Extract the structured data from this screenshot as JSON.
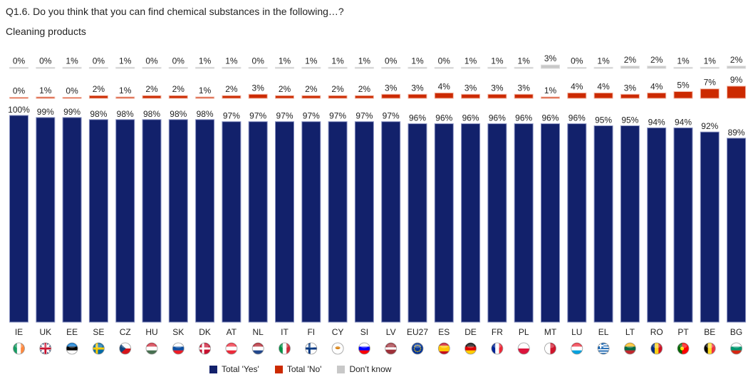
{
  "header": {
    "title": "Q1.6. Do you think that you can find chemical substances in the following…?",
    "subtitle": "Cleaning products"
  },
  "chart_data": {
    "type": "bar",
    "categories": [
      "IE",
      "UK",
      "EE",
      "SE",
      "CZ",
      "HU",
      "SK",
      "DK",
      "AT",
      "NL",
      "IT",
      "FI",
      "CY",
      "SI",
      "LV",
      "EU27",
      "ES",
      "DE",
      "FR",
      "PL",
      "MT",
      "LU",
      "EL",
      "LT",
      "RO",
      "PT",
      "BE",
      "BG"
    ],
    "series": [
      {
        "name": "Total 'Yes'",
        "color": "#12216b",
        "values": [
          100,
          99,
          99,
          98,
          98,
          98,
          98,
          98,
          97,
          97,
          97,
          97,
          97,
          97,
          97,
          96,
          96,
          96,
          96,
          96,
          96,
          96,
          95,
          95,
          94,
          94,
          92,
          89
        ]
      },
      {
        "name": "Total 'No'",
        "color": "#cc2a00",
        "values": [
          0,
          1,
          0,
          2,
          1,
          2,
          2,
          1,
          2,
          3,
          2,
          2,
          2,
          2,
          3,
          3,
          4,
          3,
          3,
          3,
          1,
          4,
          4,
          3,
          4,
          5,
          7,
          9
        ]
      },
      {
        "name": "Don't know",
        "color": "#c8c8c8",
        "values": [
          0,
          0,
          1,
          0,
          1,
          0,
          0,
          1,
          1,
          0,
          1,
          1,
          1,
          1,
          0,
          1,
          0,
          1,
          1,
          1,
          3,
          0,
          1,
          2,
          2,
          1,
          1,
          2
        ]
      }
    ],
    "value_suffix": "%",
    "legend_position": "bottom",
    "flags": [
      {
        "code": "IE",
        "colors": [
          "#169b62",
          "#ffffff",
          "#ff883e"
        ],
        "dir": "v"
      },
      {
        "code": "UK",
        "colors": [
          "#012169",
          "#ffffff",
          "#c8102e"
        ],
        "dir": "uk"
      },
      {
        "code": "EE",
        "colors": [
          "#0072ce",
          "#000000",
          "#ffffff"
        ],
        "dir": "h"
      },
      {
        "code": "SE",
        "colors": [
          "#006aa7",
          "#fecc00"
        ],
        "dir": "nordic"
      },
      {
        "code": "CZ",
        "colors": [
          "#ffffff",
          "#d7141a",
          "#11457e"
        ],
        "dir": "cz"
      },
      {
        "code": "HU",
        "colors": [
          "#ce2939",
          "#ffffff",
          "#477050"
        ],
        "dir": "h"
      },
      {
        "code": "SK",
        "colors": [
          "#ffffff",
          "#0b4ea2",
          "#ee1c25"
        ],
        "dir": "h"
      },
      {
        "code": "DK",
        "colors": [
          "#c8102e",
          "#ffffff"
        ],
        "dir": "nordic"
      },
      {
        "code": "AT",
        "colors": [
          "#ed2939",
          "#ffffff",
          "#ed2939"
        ],
        "dir": "h"
      },
      {
        "code": "NL",
        "colors": [
          "#ae1c28",
          "#ffffff",
          "#21468b"
        ],
        "dir": "h"
      },
      {
        "code": "IT",
        "colors": [
          "#009246",
          "#ffffff",
          "#ce2b37"
        ],
        "dir": "v"
      },
      {
        "code": "FI",
        "colors": [
          "#ffffff",
          "#003580"
        ],
        "dir": "nordic"
      },
      {
        "code": "CY",
        "colors": [
          "#ffffff",
          "#d57800"
        ],
        "dir": "dot"
      },
      {
        "code": "SI",
        "colors": [
          "#ffffff",
          "#0000ff",
          "#ff0000"
        ],
        "dir": "h"
      },
      {
        "code": "LV",
        "colors": [
          "#9e3039",
          "#ffffff",
          "#9e3039"
        ],
        "dir": "lv"
      },
      {
        "code": "EU27",
        "colors": [
          "#003399",
          "#ffcc00"
        ],
        "dir": "eu"
      },
      {
        "code": "ES",
        "colors": [
          "#c60b1e",
          "#ffc400",
          "#c60b1e"
        ],
        "dir": "es"
      },
      {
        "code": "DE",
        "colors": [
          "#000000",
          "#dd0000",
          "#ffce00"
        ],
        "dir": "h"
      },
      {
        "code": "FR",
        "colors": [
          "#002395",
          "#ffffff",
          "#ed2939"
        ],
        "dir": "v"
      },
      {
        "code": "PL",
        "colors": [
          "#ffffff",
          "#dc143c"
        ],
        "dir": "h"
      },
      {
        "code": "MT",
        "colors": [
          "#ffffff",
          "#cf142b"
        ],
        "dir": "v"
      },
      {
        "code": "LU",
        "colors": [
          "#ed2939",
          "#ffffff",
          "#00a1de"
        ],
        "dir": "h"
      },
      {
        "code": "EL",
        "colors": [
          "#0d5eaf",
          "#ffffff"
        ],
        "dir": "gr"
      },
      {
        "code": "LT",
        "colors": [
          "#fdb913",
          "#006a44",
          "#c1272d"
        ],
        "dir": "h"
      },
      {
        "code": "RO",
        "colors": [
          "#002b7f",
          "#fcd116",
          "#ce1126"
        ],
        "dir": "v"
      },
      {
        "code": "PT",
        "colors": [
          "#006600",
          "#ff0000"
        ],
        "dir": "pt"
      },
      {
        "code": "BE",
        "colors": [
          "#000000",
          "#fdda24",
          "#ef3340"
        ],
        "dir": "v"
      },
      {
        "code": "BG",
        "colors": [
          "#ffffff",
          "#00966e",
          "#d62612"
        ],
        "dir": "h"
      }
    ]
  }
}
